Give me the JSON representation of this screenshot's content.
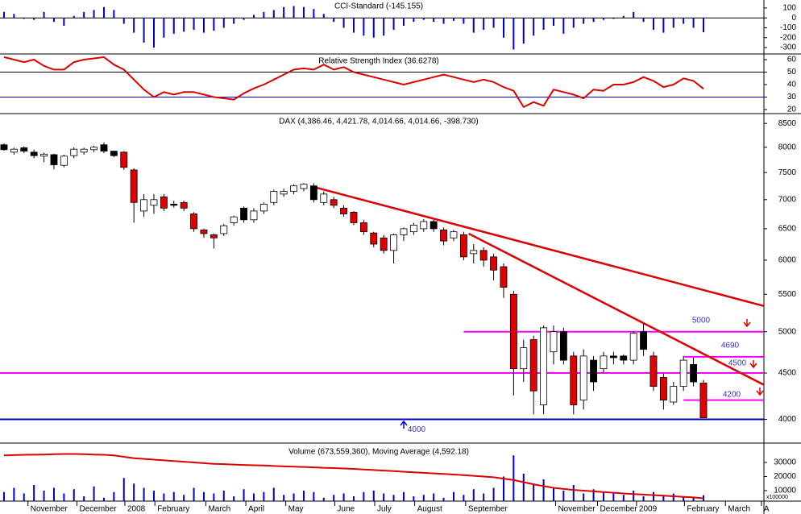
{
  "x_axis": {
    "xlim": [
      -0.4,
      76.05
    ],
    "labels": [
      "November",
      "December",
      "2008",
      "February",
      "March",
      "April",
      "May",
      "June",
      "July",
      "August",
      "September",
      "November",
      "December",
      "2009",
      "February",
      "March",
      "A"
    ],
    "positions": [
      2.4,
      7.3,
      12.1,
      15.1,
      20.2,
      24.2,
      28.2,
      33.1,
      37.1,
      41.1,
      46.2,
      55.2,
      59.4,
      63.3,
      68.1,
      72.2,
      75.8
    ]
  },
  "chart_data": [
    {
      "type": "bar",
      "title": "CCI-Standard (-145.155)",
      "color": "#0000cc",
      "ylim": [
        -357,
        181
      ],
      "yticks": [
        100,
        0,
        -100,
        -200,
        -300
      ],
      "reference_lines": [
        {
          "value": 0,
          "color": "#000000"
        }
      ],
      "values": [
        60,
        40,
        -10,
        -20,
        60,
        -40,
        -80,
        20,
        60,
        80,
        110,
        80,
        -60,
        -150,
        -250,
        -300,
        -200,
        -160,
        -140,
        -120,
        -150,
        -130,
        -100,
        -60,
        -20,
        30,
        60,
        80,
        110,
        120,
        110,
        90,
        40,
        -40,
        -100,
        -150,
        -180,
        -200,
        -180,
        -120,
        -80,
        -40,
        -20,
        -40,
        -60,
        -30,
        -60,
        -150,
        -120,
        -100,
        -200,
        -320,
        -260,
        -180,
        -120,
        -80,
        -160,
        -100,
        -60,
        -40,
        -20,
        -10,
        20,
        60,
        -40,
        -120,
        -150,
        -100,
        -60,
        -100,
        -145.155
      ]
    },
    {
      "type": "line",
      "title": "Relative Strength Index (36.6278)",
      "color": "#dd0000",
      "ylim": [
        17.4,
        63.9
      ],
      "yticks": [
        60,
        50,
        40,
        30,
        20
      ],
      "reference_lines": [
        {
          "value": 50,
          "color": "#000000"
        },
        {
          "value": 30,
          "color": "#0000cc"
        }
      ],
      "values": [
        62,
        60,
        58,
        60,
        55,
        52,
        52,
        58,
        60,
        61,
        62,
        56,
        52,
        44,
        36,
        30,
        34,
        32,
        34,
        34,
        32,
        30,
        29,
        28,
        33,
        37,
        40,
        44,
        48,
        52,
        53,
        52,
        56,
        52,
        54,
        50,
        48,
        46,
        44,
        42,
        40,
        42,
        44,
        46,
        48,
        46,
        44,
        42,
        44,
        42,
        38,
        35,
        22,
        26,
        23,
        36,
        34,
        32,
        29,
        36,
        35,
        40,
        40,
        42,
        46,
        43,
        38,
        40,
        45,
        43,
        36.6278
      ]
    },
    {
      "type": "candlestick",
      "title": "DAX (4,386.46, 4,421.78, 4,014.66, 4,014.66, -398.730)",
      "log": true,
      "ylim": [
        3780,
        8680
      ],
      "yticks": [
        8500,
        8000,
        7500,
        7000,
        6500,
        6000,
        5500,
        5000,
        4500,
        4000
      ],
      "open": [
        8050,
        7900,
        7990,
        7900,
        7820,
        7850,
        7640,
        7830,
        7900,
        7950,
        8050,
        7920,
        7900,
        7550,
        6800,
        6900,
        7050,
        6920,
        6950,
        6750,
        6480,
        6400,
        6420,
        6600,
        6850,
        6650,
        6800,
        6950,
        7100,
        7150,
        7200,
        7250,
        6950,
        7000,
        6850,
        6780,
        6600,
        6430,
        6350,
        6150,
        6400,
        6450,
        6500,
        6620,
        6480,
        6350,
        6400,
        6100,
        6150,
        6050,
        5900,
        5500,
        4550,
        4900,
        4150,
        4750,
        5000,
        4700,
        4200,
        4650,
        4550,
        4700,
        4700,
        4650,
        5000,
        4700,
        4450,
        4180,
        4350,
        4600,
        4386.46
      ],
      "high": [
        8080,
        7990,
        8020,
        7950,
        7890,
        7870,
        7850,
        8000,
        7990,
        8030,
        8100,
        7930,
        7920,
        7580,
        7100,
        7100,
        7100,
        6980,
        6980,
        6780,
        6500,
        6420,
        6580,
        6720,
        6880,
        6850,
        6950,
        7180,
        7200,
        7280,
        7300,
        7300,
        7150,
        7050,
        6900,
        6800,
        6650,
        6450,
        6400,
        6420,
        6520,
        6600,
        6660,
        6650,
        6520,
        6480,
        6450,
        6250,
        6200,
        6100,
        5950,
        5550,
        4900,
        4950,
        5080,
        5080,
        5050,
        4750,
        4780,
        4700,
        4750,
        4750,
        4720,
        5000,
        5100,
        4750,
        4500,
        4400,
        4700,
        4680,
        4421.78
      ],
      "low": [
        7930,
        7850,
        7880,
        7780,
        7700,
        7560,
        7600,
        7780,
        7850,
        7900,
        7880,
        7800,
        7550,
        6600,
        6700,
        6750,
        6800,
        6860,
        6800,
        6450,
        6350,
        6180,
        6380,
        6550,
        6600,
        6600,
        6750,
        6900,
        7050,
        7100,
        7150,
        6950,
        6900,
        6850,
        6700,
        6560,
        6400,
        6200,
        6100,
        5950,
        6300,
        6400,
        6450,
        6450,
        6230,
        6300,
        6000,
        5950,
        5900,
        5700,
        5450,
        4250,
        4400,
        4050,
        4050,
        4600,
        4600,
        4050,
        4100,
        4300,
        4500,
        4600,
        4600,
        4600,
        4700,
        4300,
        4100,
        4150,
        4300,
        4350,
        4014.66
      ],
      "close": [
        7950,
        7960,
        7920,
        7830,
        7860,
        7650,
        7820,
        7960,
        7960,
        8000,
        7920,
        7830,
        7600,
        6950,
        7000,
        7000,
        6850,
        6900,
        6850,
        6500,
        6420,
        6350,
        6550,
        6700,
        6650,
        6800,
        6920,
        7150,
        7150,
        7250,
        7280,
        7000,
        7100,
        6900,
        6750,
        6600,
        6450,
        6250,
        6150,
        6400,
        6500,
        6560,
        6620,
        6500,
        6300,
        6450,
        6050,
        6150,
        6000,
        5850,
        5600,
        4550,
        4800,
        4300,
        5050,
        5000,
        4650,
        4150,
        4700,
        4400,
        4700,
        4680,
        4650,
        4980,
        4780,
        4350,
        4200,
        4350,
        4650,
        4400,
        4014.66
      ],
      "colors": [
        "#000000",
        "#ffffff",
        "#000000",
        "#000000",
        "#ffffff",
        "#000000",
        "#ffffff",
        "#ffffff",
        "#ffffff",
        "#ffffff",
        "#000000",
        "#000000",
        "#e00000",
        "#e00000",
        "#ffffff",
        "#ffffff",
        "#e00000",
        "#000000",
        "#e00000",
        "#e00000",
        "#e00000",
        "#e00000",
        "#ffffff",
        "#ffffff",
        "#000000",
        "#ffffff",
        "#ffffff",
        "#ffffff",
        "#ffffff",
        "#ffffff",
        "#ffffff",
        "#000000",
        "#ffffff",
        "#e00000",
        "#e00000",
        "#e00000",
        "#e00000",
        "#e00000",
        "#e00000",
        "#ffffff",
        "#ffffff",
        "#ffffff",
        "#ffffff",
        "#000000",
        "#e00000",
        "#ffffff",
        "#e00000",
        "#ffffff",
        "#e00000",
        "#e00000",
        "#e00000",
        "#e00000",
        "#ffffff",
        "#e00000",
        "#ffffff",
        "#ffffff",
        "#000000",
        "#e00000",
        "#ffffff",
        "#000000",
        "#ffffff",
        "#000000",
        "#000000",
        "#ffffff",
        "#000000",
        "#e00000",
        "#e00000",
        "#ffffff",
        "#ffffff",
        "#000000",
        "#e00000"
      ],
      "trendlines": [
        {
          "x": [
            31,
            76
          ],
          "y": [
            7230,
            5340
          ],
          "color": "#dd0000"
        },
        {
          "x": [
            46.5,
            76
          ],
          "y": [
            6420,
            4370
          ],
          "color": "#dd0000"
        }
      ],
      "levels": [
        {
          "value": 5000,
          "label": "5000",
          "from": 46,
          "color": "#ff00ff"
        },
        {
          "value": 4690,
          "label": "4690",
          "from": 68,
          "color": "#ff00ff"
        },
        {
          "value": 4500,
          "label": "4500",
          "color": "#ff00ff"
        },
        {
          "value": 4200,
          "label": "4200",
          "from": 68,
          "color": "#ff00ff"
        },
        {
          "value": 4000,
          "label": "4000",
          "color": "#0000aa"
        }
      ]
    },
    {
      "type": "bar",
      "title": "Volume (673,559,360), Moving Average (4,592.18)",
      "color": "#0000cc",
      "ma_color": "#dd0000",
      "ylim": [
        2570,
        42570
      ],
      "yticks": [
        30000,
        20000,
        10000
      ],
      "scale_label": "x100000",
      "values": [
        9000,
        12000,
        8000,
        14000,
        10000,
        12000,
        8000,
        11000,
        6000,
        13000,
        5000,
        9000,
        19000,
        15000,
        12000,
        10000,
        8000,
        9000,
        7000,
        12000,
        9000,
        8000,
        10000,
        6000,
        11000,
        8000,
        9000,
        12000,
        7000,
        8000,
        10000,
        9000,
        5000,
        7000,
        8000,
        6000,
        9000,
        10000,
        8000,
        7000,
        9000,
        6000,
        7000,
        8000,
        5000,
        9000,
        7000,
        11000,
        8000,
        12000,
        20000,
        35000,
        22000,
        14000,
        18000,
        12000,
        10000,
        14000,
        8000,
        11000,
        9000,
        8000,
        7000,
        10000,
        6000,
        9000,
        7000,
        8000,
        6000,
        5000,
        6736
      ],
      "moving_average": [
        35000,
        35200,
        35400,
        35500,
        35600,
        35800,
        36000,
        36000,
        35800,
        35600,
        35400,
        35000,
        34000,
        33000,
        32500,
        32000,
        31500,
        31000,
        30500,
        30000,
        29500,
        29000,
        28800,
        28500,
        28200,
        28000,
        27800,
        27500,
        27200,
        27000,
        26800,
        26500,
        26200,
        26000,
        25700,
        25400,
        25000,
        24600,
        24200,
        23800,
        23400,
        23000,
        22600,
        22200,
        21800,
        21400,
        21000,
        20500,
        20000,
        19500,
        18500,
        17500,
        16000,
        14500,
        13200,
        12000,
        11200,
        10500,
        10000,
        9500,
        9000,
        8500,
        8000,
        7600,
        7200,
        6800,
        6400,
        6000,
        5600,
        5200,
        4592.18
      ]
    }
  ]
}
